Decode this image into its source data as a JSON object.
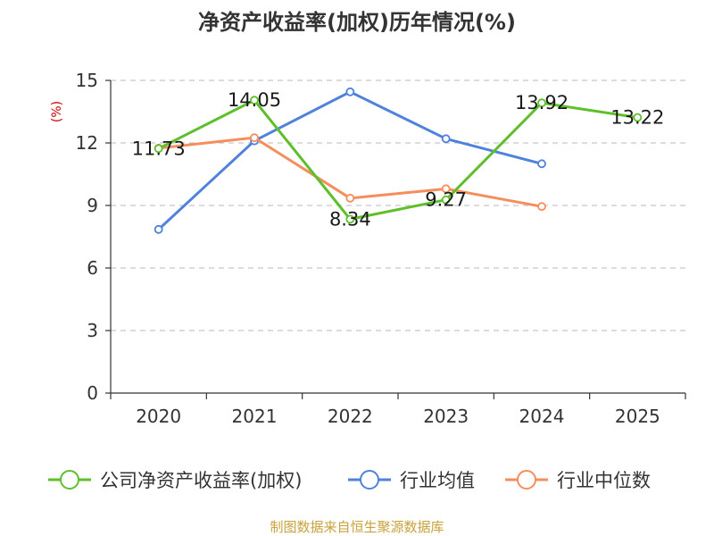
{
  "chart_data": {
    "type": "line",
    "title": "净资产收益率(加权)历年情况(%)",
    "ylabel": "(%)",
    "xlabel": "",
    "categories": [
      "2020",
      "2021",
      "2022",
      "2023",
      "2024",
      "2025"
    ],
    "ylim": [
      0,
      15
    ],
    "yticks": [
      0,
      3,
      6,
      9,
      12,
      15
    ],
    "grid": true,
    "legend_position": "bottom",
    "series": [
      {
        "name": "公司净资产收益率(加权)",
        "color": "#5dc02a",
        "values": [
          11.73,
          14.05,
          8.34,
          9.27,
          13.92,
          13.22
        ],
        "labels": [
          "11.73",
          "14.05",
          "8.34",
          "9.27",
          "13.92",
          "13.22"
        ]
      },
      {
        "name": "行业均值",
        "color": "#4f82dc",
        "values": [
          7.85,
          12.1,
          14.45,
          12.2,
          11.0,
          null
        ]
      },
      {
        "name": "行业中位数",
        "color": "#f58e5c",
        "values": [
          11.75,
          12.25,
          9.35,
          9.8,
          8.95,
          null
        ]
      }
    ],
    "source": "制图数据来自恒生聚源数据库",
    "colors": {
      "ylabel": "#cc0000",
      "source": "#c8a23a",
      "axis": "#333333",
      "grid": "#c8c8c8"
    }
  }
}
